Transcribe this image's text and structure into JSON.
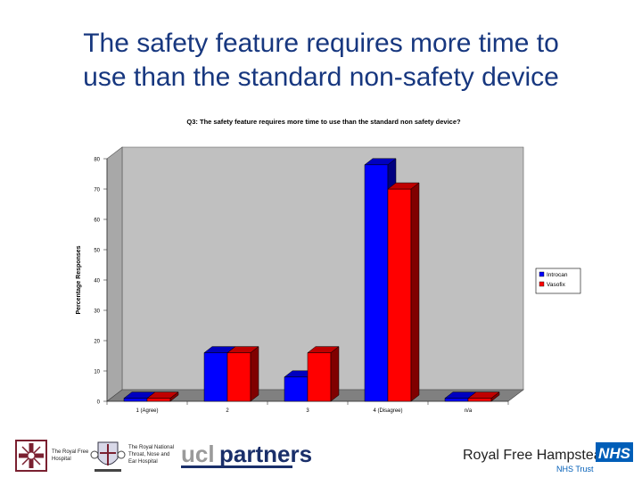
{
  "slide": {
    "title_line1": "The safety feature requires more time to",
    "title_line2": "use than the standard non-safety device"
  },
  "chart_data": {
    "type": "bar",
    "title": "Q3: The safety feature requires more time to use than the standard non safety device?",
    "xlabel": "",
    "ylabel": "Percentage Responses",
    "categories": [
      "1 (Agree)",
      "2",
      "3",
      "4 (Disagree)",
      "n/a"
    ],
    "series": [
      {
        "name": "Introcan",
        "values": [
          1,
          16,
          8,
          78,
          1
        ],
        "color": "#0000ff"
      },
      {
        "name": "Vasofix",
        "values": [
          1,
          16,
          16,
          70,
          1
        ],
        "color": "#ff0000"
      }
    ],
    "ylim": [
      0,
      80
    ],
    "yticks": [
      0,
      10,
      20,
      30,
      40,
      50,
      60,
      70,
      80
    ],
    "grid": false,
    "legend": "right",
    "style": "3d",
    "colors": {
      "plot_background": "#c0c0c0",
      "floor": "#808080",
      "title_text": "#000000"
    }
  },
  "footer": {
    "logo1_text": [
      "The Royal Free",
      "Hospital"
    ],
    "logo2_text": [
      "The Royal National",
      "Throat, Nose and",
      "Ear Hospital"
    ],
    "logo3_text_a": "ucl",
    "logo3_text_b": "partners",
    "logo4_text": "Royal Free Hampstead",
    "logo4_badge": "NHS",
    "logo4_sub": "NHS Trust"
  }
}
